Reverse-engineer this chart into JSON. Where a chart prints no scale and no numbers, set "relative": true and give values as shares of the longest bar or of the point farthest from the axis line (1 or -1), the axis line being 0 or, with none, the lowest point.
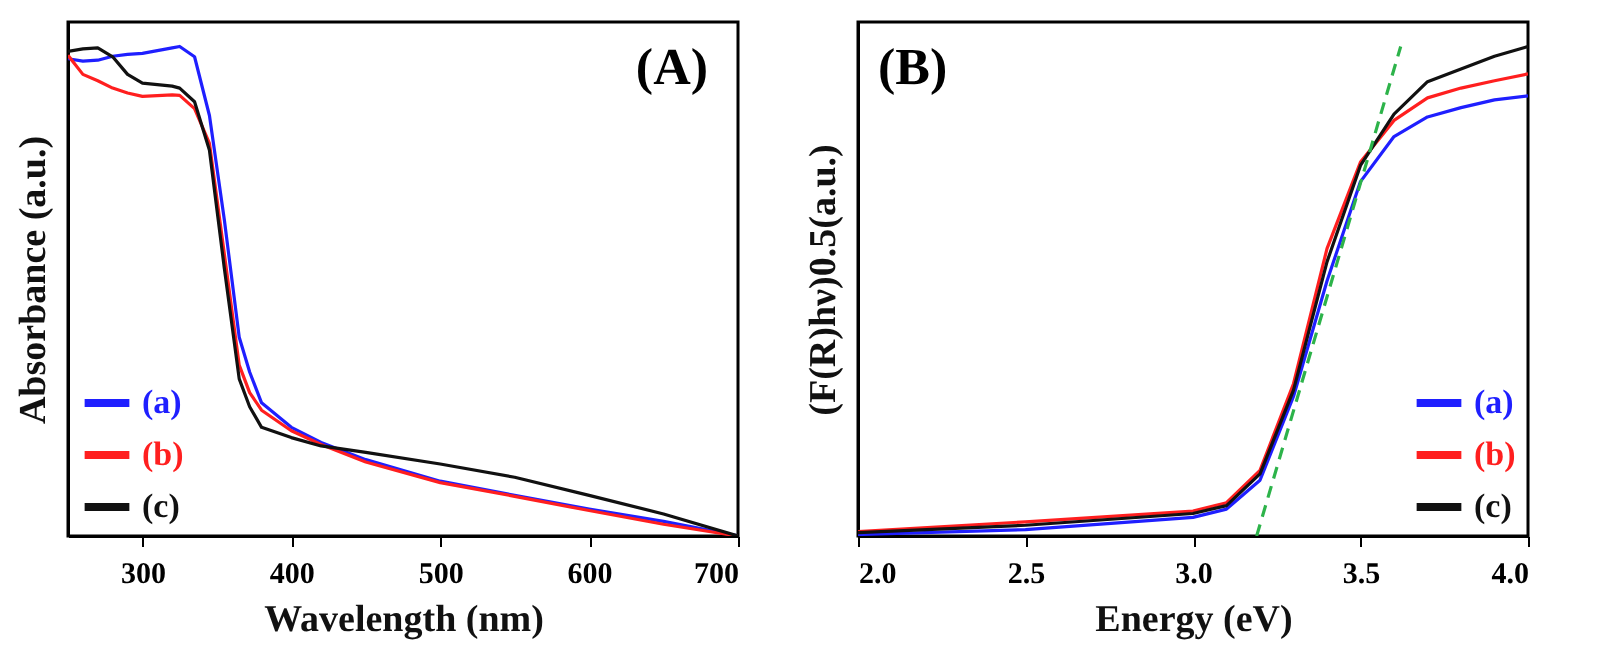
{
  "chart_data": [
    {
      "type": "line",
      "xlabel": "Wavelength (nm)",
      "ylabel": "Absorbance (a.u.)",
      "annotations": [
        "(A)"
      ],
      "relative": true,
      "xlim": [
        250,
        700
      ],
      "xticks": [
        300,
        400,
        500,
        600,
        700
      ],
      "legend": "bottom left",
      "x": [
        250,
        260,
        270,
        280,
        290,
        300,
        320,
        325,
        335,
        345,
        355,
        365,
        372,
        380,
        400,
        420,
        450,
        500,
        550,
        600,
        650,
        700
      ],
      "series": [
        {
          "name": "(a)",
          "color": "#1f1fff",
          "values": [
            0.975,
            0.97,
            0.972,
            0.98,
            0.984,
            0.986,
            0.997,
            1,
            0.979,
            0.859,
            0.646,
            0.406,
            0.335,
            0.272,
            0.222,
            0.191,
            0.156,
            0.112,
            0.083,
            0.055,
            0.03,
            0
          ]
        },
        {
          "name": "(b)",
          "color": "#ff1f1f",
          "values": [
            0.982,
            0.943,
            0.93,
            0.915,
            0.905,
            0.898,
            0.901,
            0.9,
            0.873,
            0.802,
            0.576,
            0.349,
            0.293,
            0.257,
            0.215,
            0.187,
            0.151,
            0.109,
            0.081,
            0.052,
            0.024,
            0
          ]
        },
        {
          "name": "(c)",
          "color": "#111111",
          "values": [
            0.99,
            0.995,
            0.997,
            0.979,
            0.943,
            0.925,
            0.919,
            0.915,
            0.887,
            0.788,
            0.547,
            0.321,
            0.264,
            0.222,
            0.201,
            0.184,
            0.171,
            0.147,
            0.12,
            0.083,
            0.045,
            0
          ]
        }
      ]
    },
    {
      "type": "line",
      "xlabel": "Energy (eV)",
      "ylabel": "(F(R)hν)0.5(a.u.)",
      "annotations": [
        "(B)"
      ],
      "relative": true,
      "xlim": [
        2.0,
        4.0
      ],
      "xticks": [
        {
          "value": 2,
          "label": "2.0"
        },
        {
          "value": 2.5,
          "label": "2.5"
        },
        {
          "value": 3,
          "label": "3.0"
        },
        {
          "value": 3.5,
          "label": "3.5"
        },
        {
          "value": 4,
          "label": "4.0"
        }
      ],
      "legend": "bottom right",
      "x": [
        2.0,
        2.5,
        3.0,
        3.1,
        3.2,
        3.3,
        3.4,
        3.5,
        3.6,
        3.7,
        3.8,
        3.9,
        4.0
      ],
      "series": [
        {
          "name": "(a)",
          "color": "#1f1fff",
          "values": [
            0.003,
            0.013,
            0.038,
            0.055,
            0.114,
            0.285,
            0.521,
            0.724,
            0.816,
            0.856,
            0.875,
            0.891,
            0.899
          ]
        },
        {
          "name": "(b)",
          "color": "#ff1f1f",
          "values": [
            0.009,
            0.029,
            0.051,
            0.068,
            0.134,
            0.311,
            0.587,
            0.764,
            0.849,
            0.895,
            0.915,
            0.93,
            0.944
          ]
        },
        {
          "name": "(c)",
          "color": "#111111",
          "values": [
            0.007,
            0.022,
            0.046,
            0.062,
            0.127,
            0.298,
            0.56,
            0.757,
            0.862,
            0.928,
            0.954,
            0.98,
            1
          ]
        },
        {
          "type": "line",
          "color": "#2db34a",
          "line_style": "dashed",
          "x": [
            3.19,
            3.62
          ],
          "values": [
            0,
            1
          ]
        }
      ]
    }
  ]
}
